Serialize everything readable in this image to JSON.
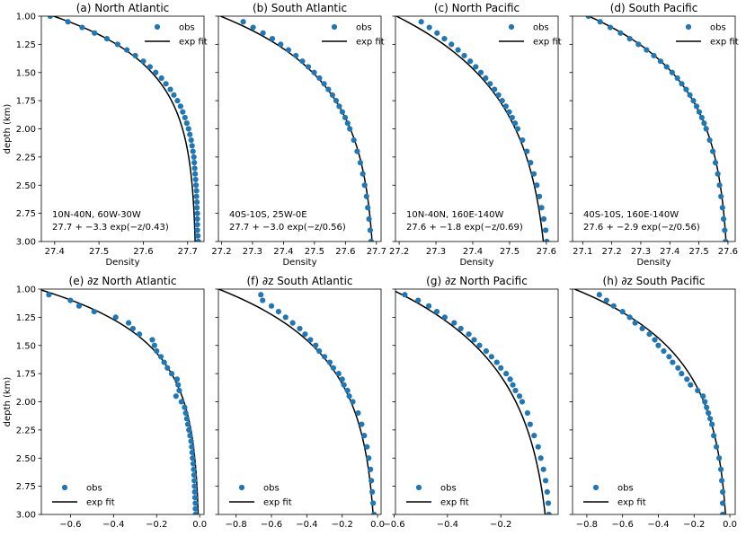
{
  "figure": {
    "ylabel": "depth (km)",
    "yticks": [
      "1.00",
      "1.25",
      "1.50",
      "1.75",
      "2.00",
      "2.25",
      "2.50",
      "2.75",
      "3.00"
    ],
    "colors": {
      "obs": "#1f77b4",
      "fit": "#000000"
    }
  },
  "chart_data": [
    {
      "id": "a",
      "type": "scatter",
      "title": "(a) North Atlantic",
      "xlabel": "Density",
      "ylabel": "depth (km)",
      "xlim": [
        27.37,
        27.737
      ],
      "ylim": [
        3.0,
        1.0
      ],
      "xticks": [
        27.4,
        27.5,
        27.6,
        27.7
      ],
      "xtick_labels": [
        "27.4",
        "27.5",
        "27.6",
        "27.7"
      ],
      "legend": [
        "obs",
        "exp fit"
      ],
      "legend_loc": "upper-right",
      "annotation": [
        "10N-40N, 60W-30W",
        "27.7 + −3.3 exp(−z/0.43)"
      ],
      "fit": {
        "kind": "exp",
        "a": 27.72,
        "b": -3.3,
        "L": 0.43
      },
      "obs": {
        "z": [
          1.0,
          1.05,
          1.1,
          1.15,
          1.2,
          1.25,
          1.3,
          1.35,
          1.4,
          1.45,
          1.5,
          1.55,
          1.6,
          1.65,
          1.7,
          1.75,
          1.8,
          1.85,
          1.9,
          1.95,
          2.0,
          2.05,
          2.1,
          2.15,
          2.2,
          2.25,
          2.3,
          2.35,
          2.4,
          2.45,
          2.5,
          2.55,
          2.6,
          2.65,
          2.7,
          2.75,
          2.8,
          2.85,
          2.9,
          2.95,
          3.0
        ],
        "x": [
          27.39,
          27.43,
          27.462,
          27.49,
          27.518,
          27.542,
          27.563,
          27.582,
          27.6,
          27.615,
          27.628,
          27.641,
          27.651,
          27.661,
          27.669,
          27.677,
          27.684,
          27.689,
          27.694,
          27.698,
          27.702,
          27.705,
          27.708,
          27.71,
          27.712,
          27.714,
          27.715,
          27.716,
          27.717,
          27.718,
          27.719,
          27.72,
          27.72,
          27.721,
          27.721,
          27.722,
          27.722,
          27.722,
          27.722,
          27.723,
          27.724
        ]
      }
    },
    {
      "id": "b",
      "type": "scatter",
      "title": "(b) South Atlantic",
      "xlabel": "Density",
      "ylabel": "",
      "xlim": [
        27.19,
        27.715
      ],
      "ylim": [
        3.0,
        1.0
      ],
      "xticks": [
        27.2,
        27.3,
        27.4,
        27.5,
        27.6,
        27.7
      ],
      "xtick_labels": [
        "27.2",
        "27.3",
        "27.4",
        "27.5",
        "27.6",
        "27.7"
      ],
      "legend": [
        "obs",
        "exp fit"
      ],
      "legend_loc": "upper-right",
      "annotation": [
        "40S-10S, 25W-0E",
        "27.7 + −3.0 exp(−z/0.56)"
      ],
      "fit": {
        "kind": "exp",
        "a": 27.7,
        "b": -3.0,
        "L": 0.56
      },
      "obs": {
        "z": [
          1.05,
          1.1,
          1.15,
          1.2,
          1.25,
          1.3,
          1.35,
          1.4,
          1.45,
          1.5,
          1.55,
          1.6,
          1.65,
          1.7,
          1.75,
          1.8,
          1.85,
          1.9,
          1.95,
          2.0,
          2.1,
          2.2,
          2.3,
          2.4,
          2.5,
          2.6,
          2.7,
          2.8,
          2.9,
          3.0
        ],
        "x": [
          27.27,
          27.302,
          27.334,
          27.364,
          27.391,
          27.416,
          27.44,
          27.461,
          27.48,
          27.499,
          27.516,
          27.531,
          27.545,
          27.558,
          27.57,
          27.58,
          27.59,
          27.599,
          27.607,
          27.614,
          27.627,
          27.638,
          27.648,
          27.656,
          27.662,
          27.668,
          27.672,
          27.676,
          27.68,
          27.683
        ]
      }
    },
    {
      "id": "c",
      "type": "scatter",
      "title": "(c) North Pacific",
      "xlabel": "Density",
      "ylabel": "",
      "xlim": [
        27.19,
        27.632
      ],
      "ylim": [
        3.0,
        1.0
      ],
      "xticks": [
        27.2,
        27.3,
        27.4,
        27.5,
        27.6
      ],
      "xtick_labels": [
        "27.2",
        "27.3",
        "27.4",
        "27.5",
        "27.6"
      ],
      "legend": [
        "obs",
        "exp fit"
      ],
      "legend_loc": "upper-right",
      "annotation": [
        "10N-40N, 160E-140W",
        "27.6 + −1.8 exp(−z/0.69)"
      ],
      "fit": {
        "kind": "exp",
        "a": 27.615,
        "b": -1.8,
        "L": 0.69
      },
      "obs": {
        "z": [
          1.05,
          1.1,
          1.15,
          1.2,
          1.25,
          1.3,
          1.35,
          1.4,
          1.45,
          1.5,
          1.55,
          1.6,
          1.65,
          1.7,
          1.75,
          1.8,
          1.85,
          1.9,
          1.95,
          2.0,
          2.1,
          2.2,
          2.3,
          2.4,
          2.5,
          2.6,
          2.7,
          2.8,
          2.9,
          3.0
        ],
        "x": [
          27.26,
          27.282,
          27.303,
          27.323,
          27.342,
          27.36,
          27.377,
          27.393,
          27.408,
          27.422,
          27.435,
          27.447,
          27.459,
          27.47,
          27.48,
          27.49,
          27.499,
          27.507,
          27.515,
          27.522,
          27.535,
          27.547,
          27.557,
          27.566,
          27.574,
          27.581,
          27.587,
          27.593,
          27.598,
          27.601
        ]
      }
    },
    {
      "id": "d",
      "type": "scatter",
      "title": "(d) South Pacific",
      "xlabel": "Density",
      "ylabel": "",
      "xlim": [
        27.065,
        27.625
      ],
      "ylim": [
        3.0,
        1.0
      ],
      "xticks": [
        27.1,
        27.2,
        27.3,
        27.4,
        27.5,
        27.6
      ],
      "xtick_labels": [
        "27.1",
        "27.2",
        "27.3",
        "27.4",
        "27.5",
        "27.6"
      ],
      "legend": [
        "obs",
        "exp fit"
      ],
      "legend_loc": "upper-right",
      "annotation": [
        "40S-10S, 160E-140W",
        "27.6 + −2.9 exp(−z/0.56)"
      ],
      "fit": {
        "kind": "exp",
        "a": 27.607,
        "b": -2.9,
        "L": 0.56
      },
      "obs": {
        "z": [
          1.0,
          1.05,
          1.1,
          1.15,
          1.2,
          1.25,
          1.3,
          1.35,
          1.4,
          1.45,
          1.5,
          1.55,
          1.6,
          1.65,
          1.7,
          1.75,
          1.8,
          1.85,
          1.9,
          1.95,
          2.0,
          2.1,
          2.2,
          2.3,
          2.4,
          2.5,
          2.6,
          2.7,
          2.8,
          2.9,
          3.0
        ],
        "x": [
          27.12,
          27.16,
          27.195,
          27.23,
          27.262,
          27.292,
          27.32,
          27.345,
          27.368,
          27.389,
          27.408,
          27.426,
          27.441,
          27.456,
          27.469,
          27.481,
          27.492,
          27.501,
          27.51,
          27.518,
          27.525,
          27.537,
          27.548,
          27.557,
          27.565,
          27.571,
          27.576,
          27.581,
          27.585,
          27.589,
          27.592
        ]
      }
    },
    {
      "id": "e",
      "type": "scatter",
      "title": "(e) ∂z North Atlantic",
      "xlabel": "",
      "ylabel": "depth (km)",
      "xlim": [
        -0.735,
        0.02
      ],
      "ylim": [
        3.0,
        1.0
      ],
      "xticks": [
        -0.6,
        -0.4,
        -0.2,
        0.0
      ],
      "xtick_labels": [
        "−0.6",
        "−0.4",
        "−0.2",
        "0.0"
      ],
      "legend": [
        "obs",
        "exp fit"
      ],
      "legend_loc": "lower-left",
      "fit": {
        "kind": "deriv",
        "b": -3.3,
        "L": 0.43
      },
      "obs": {
        "z": [
          1.05,
          1.1,
          1.15,
          1.2,
          1.25,
          1.3,
          1.35,
          1.4,
          1.45,
          1.5,
          1.55,
          1.6,
          1.65,
          1.7,
          1.75,
          1.8,
          1.85,
          1.9,
          1.95,
          2.0,
          2.05,
          2.1,
          2.15,
          2.2,
          2.25,
          2.3,
          2.35,
          2.4,
          2.45,
          2.5,
          2.55,
          2.6,
          2.65,
          2.7,
          2.75,
          2.8,
          2.85,
          2.9,
          2.95,
          3.0
        ],
        "x": [
          -0.7,
          -0.6,
          -0.56,
          -0.49,
          -0.39,
          -0.33,
          -0.31,
          -0.28,
          -0.22,
          -0.21,
          -0.2,
          -0.18,
          -0.165,
          -0.15,
          -0.13,
          -0.105,
          -0.1,
          -0.095,
          -0.11,
          -0.085,
          -0.07,
          -0.065,
          -0.06,
          -0.055,
          -0.05,
          -0.045,
          -0.04,
          -0.037,
          -0.035,
          -0.033,
          -0.03,
          -0.028,
          -0.026,
          -0.025,
          -0.024,
          -0.023,
          -0.022,
          -0.02,
          -0.02,
          -0.019
        ]
      }
    },
    {
      "id": "f",
      "type": "scatter",
      "title": "(f) ∂z South Atlantic",
      "xlabel": "",
      "ylabel": "",
      "xlim": [
        -0.9,
        0.02
      ],
      "ylim": [
        3.0,
        1.0
      ],
      "xticks": [
        -0.8,
        -0.6,
        -0.4,
        -0.2,
        0.0
      ],
      "xtick_labels": [
        "−0.8",
        "−0.6",
        "−0.4",
        "−0.2",
        "0.0"
      ],
      "legend": [
        "obs",
        "exp fit"
      ],
      "legend_loc": "lower-left",
      "fit": {
        "kind": "deriv",
        "b": -3.0,
        "L": 0.56
      },
      "obs": {
        "z": [
          1.05,
          1.1,
          1.15,
          1.2,
          1.25,
          1.3,
          1.35,
          1.4,
          1.45,
          1.5,
          1.55,
          1.6,
          1.65,
          1.7,
          1.75,
          1.8,
          1.85,
          1.9,
          1.95,
          2.0,
          2.1,
          2.2,
          2.3,
          2.4,
          2.5,
          2.6,
          2.7,
          2.8,
          2.9,
          3.0
        ],
        "x": [
          -0.66,
          -0.65,
          -0.6,
          -0.56,
          -0.52,
          -0.48,
          -0.44,
          -0.41,
          -0.38,
          -0.35,
          -0.33,
          -0.3,
          -0.27,
          -0.25,
          -0.22,
          -0.2,
          -0.19,
          -0.17,
          -0.16,
          -0.14,
          -0.11,
          -0.09,
          -0.075,
          -0.06,
          -0.05,
          -0.04,
          -0.035,
          -0.03,
          -0.025,
          -0.02
        ]
      }
    },
    {
      "id": "g",
      "type": "scatter",
      "title": "(g) ∂z North Pacific",
      "xlabel": "",
      "ylabel": "",
      "xlim": [
        -0.595,
        0.015
      ],
      "ylim": [
        3.0,
        1.0
      ],
      "xticks": [
        -0.6,
        -0.4,
        -0.2
      ],
      "xtick_labels": [
        "−0.6",
        "−0.4",
        "−0.2"
      ],
      "legend": [
        "obs",
        "exp fit"
      ],
      "legend_loc": "lower-left",
      "fit": {
        "kind": "deriv",
        "b": -1.8,
        "L": 0.69
      },
      "obs": {
        "z": [
          1.05,
          1.1,
          1.15,
          1.2,
          1.25,
          1.3,
          1.35,
          1.4,
          1.45,
          1.5,
          1.55,
          1.6,
          1.65,
          1.7,
          1.75,
          1.8,
          1.85,
          1.9,
          1.95,
          2.0,
          2.1,
          2.2,
          2.3,
          2.4,
          2.5,
          2.6,
          2.7,
          2.8,
          2.9,
          3.0
        ],
        "x": [
          -0.56,
          -0.51,
          -0.47,
          -0.44,
          -0.41,
          -0.375,
          -0.35,
          -0.32,
          -0.3,
          -0.28,
          -0.255,
          -0.235,
          -0.215,
          -0.2,
          -0.18,
          -0.165,
          -0.155,
          -0.145,
          -0.13,
          -0.12,
          -0.1,
          -0.09,
          -0.075,
          -0.06,
          -0.05,
          -0.04,
          -0.032,
          -0.026,
          -0.022,
          -0.02
        ]
      }
    },
    {
      "id": "h",
      "type": "scatter",
      "title": "(h) ∂z South Pacific",
      "xlabel": "",
      "ylabel": "",
      "xlim": [
        -0.88,
        0.03
      ],
      "ylim": [
        3.0,
        1.0
      ],
      "xticks": [
        -0.8,
        -0.6,
        -0.4,
        -0.2,
        0.0
      ],
      "xtick_labels": [
        "−0.8",
        "−0.6",
        "−0.4",
        "−0.2",
        "0.0"
      ],
      "legend": [
        "obs",
        "exp fit"
      ],
      "legend_loc": "lower-left",
      "fit": {
        "kind": "deriv",
        "b": -2.9,
        "L": 0.56
      },
      "obs": {
        "z": [
          1.05,
          1.1,
          1.15,
          1.2,
          1.25,
          1.3,
          1.35,
          1.4,
          1.45,
          1.5,
          1.55,
          1.6,
          1.65,
          1.7,
          1.75,
          1.8,
          1.85,
          1.9,
          1.95,
          2.0,
          2.05,
          2.1,
          2.15,
          2.2,
          2.3,
          2.4,
          2.5,
          2.6,
          2.7,
          2.8,
          2.9,
          3.0
        ],
        "x": [
          -0.73,
          -0.69,
          -0.65,
          -0.6,
          -0.56,
          -0.53,
          -0.49,
          -0.45,
          -0.42,
          -0.4,
          -0.37,
          -0.34,
          -0.32,
          -0.29,
          -0.27,
          -0.24,
          -0.22,
          -0.18,
          -0.15,
          -0.14,
          -0.13,
          -0.12,
          -0.11,
          -0.1,
          -0.09,
          -0.075,
          -0.06,
          -0.05,
          -0.045,
          -0.04,
          -0.04,
          -0.04
        ]
      }
    }
  ]
}
